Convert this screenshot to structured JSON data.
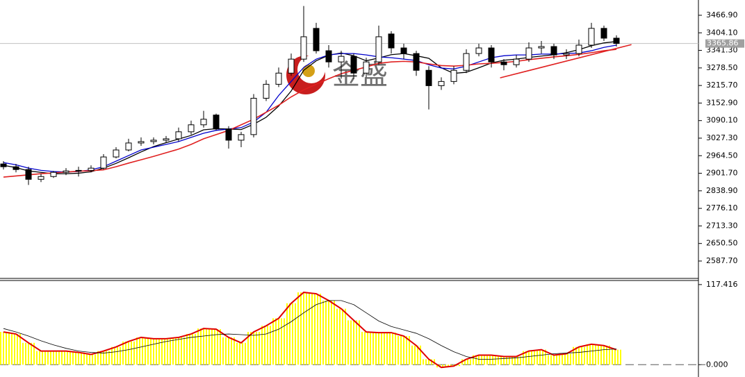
{
  "chart_data": [
    {
      "type": "candlestick",
      "ylim": [
        2528,
        3521.5
      ],
      "yticks": [
        {
          "value": 3466.9,
          "label": "3466.90"
        },
        {
          "value": 3404.1,
          "label": "3404.10"
        },
        {
          "value": 3341.3,
          "label": "3341.30"
        },
        {
          "value": 3278.5,
          "label": "3278.50"
        },
        {
          "value": 3215.7,
          "label": "3215.70"
        },
        {
          "value": 3152.9,
          "label": "3152.90"
        },
        {
          "value": 3090.1,
          "label": "3090.10"
        },
        {
          "value": 3027.3,
          "label": "3027.30"
        },
        {
          "value": 2964.5,
          "label": "2964.50"
        },
        {
          "value": 2901.7,
          "label": "2901.70"
        },
        {
          "value": 2838.9,
          "label": "2838.90"
        },
        {
          "value": 2776.1,
          "label": "2776.10"
        },
        {
          "value": 2713.3,
          "label": "2713.30"
        },
        {
          "value": 2650.5,
          "label": "2650.50"
        },
        {
          "value": 2587.7,
          "label": "2587.70"
        }
      ],
      "up_color": "#ffffff",
      "down_color": "#000000",
      "open": [
        2935,
        2925,
        2915,
        2880,
        2890,
        2905,
        2910,
        2912,
        2920,
        2960,
        2985,
        3010,
        3015,
        3020,
        3025,
        3050,
        3075,
        3110,
        3060,
        3020,
        3040,
        3170,
        3220,
        3260,
        3310,
        3420,
        3340,
        3300,
        3320,
        3260,
        3300,
        3400,
        3350,
        3330,
        3270,
        3215,
        3230,
        3270,
        3330,
        3350,
        3300,
        3290,
        3310,
        3350,
        3355,
        3325,
        3330,
        3360,
        3420,
        3385
      ],
      "high": [
        2945,
        2935,
        2925,
        2900,
        2910,
        2920,
        2925,
        2930,
        2970,
        2995,
        3025,
        3030,
        3030,
        3035,
        3065,
        3090,
        3125,
        3115,
        3070,
        3050,
        3185,
        3235,
        3280,
        3330,
        3500,
        3440,
        3360,
        3340,
        3330,
        3315,
        3430,
        3410,
        3365,
        3340,
        3285,
        3245,
        3285,
        3345,
        3365,
        3360,
        3310,
        3325,
        3370,
        3375,
        3365,
        3345,
        3380,
        3440,
        3430,
        3395
      ],
      "low": [
        2915,
        2905,
        2860,
        2870,
        2885,
        2895,
        2890,
        2905,
        2915,
        2955,
        2980,
        3000,
        3005,
        3010,
        3015,
        3040,
        3065,
        3055,
        2990,
        2995,
        3030,
        3160,
        3210,
        3250,
        3300,
        3330,
        3280,
        3240,
        3240,
        3245,
        3290,
        3330,
        3310,
        3250,
        3130,
        3200,
        3220,
        3260,
        3320,
        3280,
        3270,
        3280,
        3300,
        3330,
        3310,
        3310,
        3320,
        3350,
        3375,
        3355
      ],
      "close": [
        2925,
        2915,
        2880,
        2890,
        2905,
        2910,
        2912,
        2920,
        2960,
        2985,
        3010,
        3015,
        3020,
        3025,
        3050,
        3075,
        3095,
        3060,
        3020,
        3040,
        3170,
        3220,
        3260,
        3310,
        3390,
        3340,
        3300,
        3320,
        3260,
        3300,
        3390,
        3350,
        3330,
        3270,
        3215,
        3230,
        3270,
        3330,
        3350,
        3300,
        3290,
        3310,
        3350,
        3355,
        3325,
        3330,
        3360,
        3420,
        3385,
        3366
      ],
      "moving_averages": [
        {
          "color": "#000000",
          "values": [
            2930,
            2922,
            2910,
            2905,
            2900,
            2900,
            2902,
            2907,
            2920,
            2937,
            2957,
            2978,
            2997,
            3011,
            3024,
            3037,
            3057,
            3061,
            3060,
            3058,
            3077,
            3102,
            3142,
            3196,
            3270,
            3304,
            3324,
            3332,
            3322,
            3304,
            3314,
            3326,
            3330,
            3322,
            3313,
            3279,
            3259,
            3263,
            3279,
            3296,
            3306,
            3310,
            3316,
            3321,
            3326,
            3333,
            3344,
            3358,
            3368,
            3373
          ]
        },
        {
          "color": "#0000cc",
          "values": [
            2940,
            2932,
            2920,
            2912,
            2908,
            2906,
            2908,
            2914,
            2925,
            2945,
            2965,
            2985,
            2995,
            3005,
            3015,
            3030,
            3045,
            3055,
            3060,
            3065,
            3085,
            3120,
            3180,
            3230,
            3280,
            3310,
            3325,
            3330,
            3330,
            3325,
            3318,
            3315,
            3310,
            3305,
            3290,
            3278,
            3275,
            3285,
            3300,
            3315,
            3322,
            3325,
            3325,
            3328,
            3328,
            3330,
            3332,
            3340,
            3352,
            3360
          ]
        },
        {
          "color": "#e02020",
          "values": [
            2888,
            2892,
            2896,
            2900,
            2903,
            2906,
            2909,
            2911,
            2914,
            2925,
            2938,
            2950,
            2962,
            2975,
            2988,
            3005,
            3025,
            3040,
            3055,
            3075,
            3095,
            3120,
            3145,
            3175,
            3200,
            3220,
            3240,
            3258,
            3270,
            3282,
            3295,
            3300,
            3302,
            3300,
            3293,
            3287,
            3285,
            3288,
            3293,
            3295,
            3298,
            3302,
            3308,
            3313,
            3318,
            3322,
            3327,
            3333,
            3340,
            3345
          ]
        }
      ],
      "trend_line": {
        "color": "#e02020",
        "x": [
          39.7,
          50.2
        ],
        "values": [
          3243,
          3362
        ]
      },
      "last_price": {
        "value": 3365.86,
        "label": "3365.86"
      },
      "watermark": "金盛"
    },
    {
      "type": "bar",
      "ylim": [
        -15,
        123.4
      ],
      "yticks": [
        {
          "value": 117.416,
          "label": "117.416"
        },
        {
          "value": 0,
          "label": "0.000"
        }
      ],
      "color": "#ffff00",
      "outline_color": "#e00000",
      "values": [
        48,
        45,
        32,
        20,
        20,
        20,
        18,
        15,
        20,
        26,
        34,
        40,
        38,
        38,
        40,
        45,
        53,
        52,
        40,
        32,
        48,
        57,
        68,
        90,
        106,
        104,
        94,
        82,
        65,
        48,
        47,
        47,
        42,
        28,
        8,
        -4,
        -2,
        8,
        14,
        14,
        12,
        12,
        20,
        22,
        14,
        16,
        26,
        30,
        28,
        22
      ],
      "signal": {
        "color": "#000000",
        "values": [
          53,
          48,
          42,
          35,
          29,
          24,
          20,
          18,
          17,
          19,
          22,
          26,
          30,
          34,
          37,
          40,
          42,
          44,
          45,
          44,
          43,
          45,
          52,
          63,
          76,
          88,
          94,
          94,
          88,
          76,
          64,
          56,
          51,
          46,
          38,
          28,
          19,
          12,
          8,
          8,
          9,
          10,
          12,
          14,
          16,
          17,
          18,
          20,
          22,
          23
        ]
      }
    }
  ]
}
